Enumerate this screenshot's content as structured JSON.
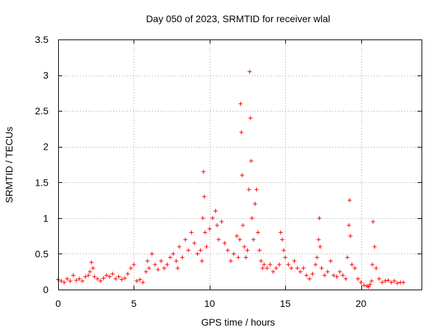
{
  "chart_data": {
    "type": "scatter",
    "title": "Day 050 of 2023, SRMTID for receiver wlal",
    "xlabel": "GPS time / hours",
    "ylabel": "SRMTID / TECUs",
    "xlim": [
      0,
      24
    ],
    "ylim": [
      0,
      3.5
    ],
    "xticks": [
      0,
      5,
      10,
      15,
      20
    ],
    "xtick_labels": [
      "0",
      "5",
      "10",
      "15",
      "20"
    ],
    "yticks": [
      0,
      0.5,
      1,
      1.5,
      2,
      2.5,
      3,
      3.5
    ],
    "ytick_labels": [
      "0",
      "0.5",
      "1",
      "1.5",
      "2",
      "2.5",
      "3",
      "3.5"
    ],
    "grid": true,
    "marker": "+",
    "color": "#ff0000",
    "series": [
      {
        "name": "SRMTID",
        "x": [
          0.0,
          0.2,
          0.4,
          0.6,
          0.8,
          1.0,
          1.2,
          1.4,
          1.6,
          1.8,
          2.0,
          2.1,
          2.2,
          2.3,
          2.4,
          2.6,
          2.8,
          3.0,
          3.2,
          3.4,
          3.6,
          3.8,
          4.0,
          4.2,
          4.4,
          4.6,
          4.8,
          5.0,
          5.2,
          5.4,
          5.6,
          5.8,
          5.9,
          6.0,
          6.2,
          6.4,
          6.6,
          6.8,
          7.0,
          7.2,
          7.4,
          7.6,
          7.8,
          7.9,
          8.0,
          8.2,
          8.4,
          8.6,
          8.8,
          9.0,
          9.2,
          9.4,
          9.5,
          9.55,
          9.6,
          9.65,
          9.7,
          9.8,
          10.0,
          10.2,
          10.4,
          10.5,
          10.6,
          10.8,
          11.0,
          11.2,
          11.4,
          11.6,
          11.8,
          11.9,
          12.0,
          12.05,
          12.1,
          12.15,
          12.2,
          12.3,
          12.4,
          12.5,
          12.6,
          12.65,
          12.7,
          12.75,
          12.8,
          12.9,
          13.0,
          13.1,
          13.2,
          13.3,
          13.4,
          13.5,
          13.6,
          13.8,
          14.0,
          14.2,
          14.4,
          14.6,
          14.7,
          14.8,
          14.9,
          15.0,
          15.2,
          15.4,
          15.6,
          15.8,
          16.0,
          16.2,
          16.4,
          16.6,
          16.8,
          17.0,
          17.1,
          17.2,
          17.25,
          17.3,
          17.4,
          17.6,
          17.8,
          18.0,
          18.2,
          18.4,
          18.6,
          18.8,
          19.0,
          19.1,
          19.2,
          19.25,
          19.3,
          19.4,
          19.6,
          19.8,
          20.0,
          20.2,
          20.4,
          20.5,
          20.6,
          20.7,
          20.75,
          20.8,
          20.9,
          21.0,
          21.2,
          21.4,
          21.6,
          21.8,
          22.0,
          22.2,
          22.4,
          22.6,
          22.8
        ],
        "y": [
          0.14,
          0.12,
          0.1,
          0.15,
          0.12,
          0.2,
          0.13,
          0.15,
          0.12,
          0.18,
          0.2,
          0.25,
          0.38,
          0.3,
          0.18,
          0.15,
          0.12,
          0.16,
          0.2,
          0.18,
          0.22,
          0.15,
          0.18,
          0.14,
          0.16,
          0.22,
          0.3,
          0.35,
          0.12,
          0.14,
          0.1,
          0.25,
          0.4,
          0.3,
          0.5,
          0.35,
          0.28,
          0.4,
          0.3,
          0.35,
          0.45,
          0.5,
          0.4,
          0.3,
          0.6,
          0.45,
          0.7,
          0.55,
          0.8,
          0.65,
          0.5,
          0.55,
          0.4,
          1.0,
          1.65,
          1.3,
          0.8,
          0.6,
          0.85,
          1.0,
          1.1,
          0.9,
          0.7,
          0.95,
          0.65,
          0.55,
          0.4,
          0.5,
          0.75,
          0.45,
          0.7,
          2.6,
          2.2,
          1.6,
          0.9,
          0.6,
          0.45,
          0.55,
          1.4,
          3.05,
          2.4,
          1.8,
          1.0,
          0.7,
          1.2,
          1.4,
          0.8,
          0.55,
          0.4,
          0.3,
          0.35,
          0.3,
          0.35,
          0.25,
          0.3,
          0.35,
          0.8,
          0.7,
          0.55,
          0.45,
          0.35,
          0.3,
          0.4,
          0.3,
          0.25,
          0.3,
          0.2,
          0.15,
          0.22,
          0.35,
          0.45,
          0.7,
          1.0,
          0.6,
          0.3,
          0.2,
          0.25,
          0.4,
          0.2,
          0.18,
          0.25,
          0.2,
          0.15,
          0.45,
          0.9,
          1.25,
          0.75,
          0.35,
          0.3,
          0.15,
          0.1,
          0.06,
          0.05,
          0.04,
          0.07,
          0.12,
          0.35,
          0.95,
          0.6,
          0.3,
          0.15,
          0.1,
          0.12,
          0.13,
          0.1,
          0.12,
          0.09,
          0.1,
          0.1
        ]
      }
    ]
  }
}
